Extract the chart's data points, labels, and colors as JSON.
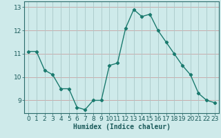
{
  "x": [
    0,
    1,
    2,
    3,
    4,
    5,
    6,
    7,
    8,
    9,
    10,
    11,
    12,
    13,
    14,
    15,
    16,
    17,
    18,
    19,
    20,
    21,
    22,
    23
  ],
  "y": [
    11.1,
    11.1,
    10.3,
    10.1,
    9.5,
    9.5,
    8.7,
    8.6,
    9.0,
    9.0,
    10.5,
    10.6,
    12.1,
    12.9,
    12.6,
    12.7,
    12.0,
    11.5,
    11.0,
    10.5,
    10.1,
    9.3,
    9.0,
    8.9
  ],
  "line_color": "#1a7a6e",
  "marker": "D",
  "marker_size": 2.2,
  "bg_color": "#ceeaea",
  "grid_color_h": "#c8a0a0",
  "grid_color_v": "#a8c8c8",
  "xlabel": "Humidex (Indice chaleur)",
  "xlim_min": -0.5,
  "xlim_max": 23.5,
  "ylim_min": 8.45,
  "ylim_max": 13.25,
  "yticks": [
    9,
    10,
    11,
    12,
    13
  ],
  "xticks": [
    0,
    1,
    2,
    3,
    4,
    5,
    6,
    7,
    8,
    9,
    10,
    11,
    12,
    13,
    14,
    15,
    16,
    17,
    18,
    19,
    20,
    21,
    22,
    23
  ],
  "xlabel_fontsize": 7,
  "tick_fontsize": 6.5,
  "line_width": 1.0
}
